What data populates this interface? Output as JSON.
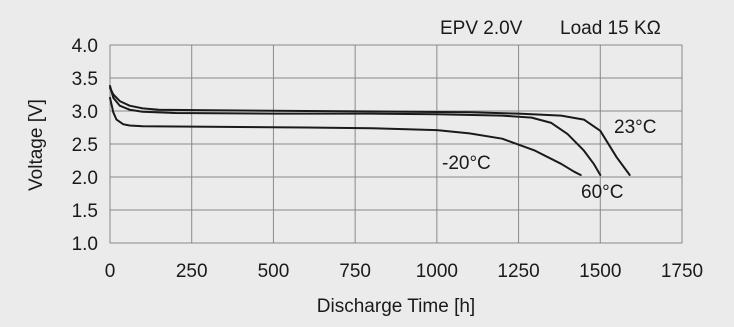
{
  "chart_data": {
    "type": "line",
    "annotation_left": "EPV 2.0V",
    "annotation_right": "Load 15 KΩ",
    "xlabel": "Discharge Time [h]",
    "ylabel": "Voltage [V]",
    "xlim": [
      0,
      1750
    ],
    "ylim": [
      1.0,
      4.0
    ],
    "xticks": [
      "0",
      "250",
      "500",
      "750",
      "1000",
      "1250",
      "1500",
      "1750"
    ],
    "yticks": [
      "4.0",
      "3.5",
      "3.0",
      "2.5",
      "2.0",
      "1.5",
      "1.0"
    ],
    "grid": true,
    "series": [
      {
        "name": "23°C",
        "x": [
          0,
          10,
          30,
          60,
          100,
          150,
          300,
          600,
          900,
          1100,
          1250,
          1380,
          1450,
          1500,
          1550,
          1590
        ],
        "y": [
          3.35,
          3.25,
          3.15,
          3.08,
          3.04,
          3.02,
          3.01,
          3.0,
          2.99,
          2.98,
          2.96,
          2.93,
          2.87,
          2.7,
          2.3,
          2.03
        ]
      },
      {
        "name": "60°C",
        "x": [
          0,
          10,
          30,
          60,
          100,
          200,
          500,
          800,
          1000,
          1200,
          1290,
          1350,
          1400,
          1450,
          1480,
          1500
        ],
        "y": [
          3.38,
          3.2,
          3.08,
          3.02,
          2.99,
          2.97,
          2.96,
          2.96,
          2.95,
          2.93,
          2.9,
          2.82,
          2.65,
          2.4,
          2.2,
          2.03
        ]
      },
      {
        "name": "-20°C",
        "x": [
          0,
          10,
          20,
          40,
          60,
          100,
          300,
          600,
          800,
          1000,
          1100,
          1200,
          1300,
          1380,
          1420,
          1440
        ],
        "y": [
          3.2,
          2.98,
          2.87,
          2.8,
          2.78,
          2.77,
          2.76,
          2.75,
          2.74,
          2.71,
          2.66,
          2.58,
          2.4,
          2.2,
          2.08,
          2.03
        ]
      }
    ]
  }
}
